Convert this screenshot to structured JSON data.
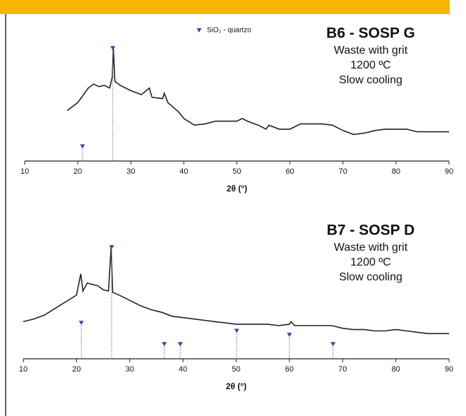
{
  "chart_data": [
    {
      "type": "line",
      "title": "B6 - SOSP G",
      "annotations": [
        "Waste with grit",
        "1200 ºC",
        "Slow cooling"
      ],
      "xlabel": "2θ (°)",
      "xlim": [
        10,
        90
      ],
      "xticks": [
        10,
        20,
        30,
        40,
        50,
        60,
        70,
        80,
        90
      ],
      "ylim": [
        0,
        100
      ],
      "series": [
        {
          "color": "#222222",
          "style": "line",
          "x": [
            18,
            20,
            22,
            23,
            24,
            25,
            26,
            26.5,
            26.7,
            27,
            28,
            30,
            32,
            33.5,
            34,
            36,
            36.3,
            37,
            39,
            40,
            42,
            44,
            46,
            48,
            50,
            51,
            52,
            54,
            55.5,
            56,
            58,
            60,
            62,
            64,
            66,
            68,
            70,
            72,
            74,
            76,
            78,
            80,
            82,
            84,
            86,
            88,
            90
          ],
          "values": [
            38,
            44,
            55,
            58,
            56,
            57,
            55,
            63,
            85,
            60,
            57,
            53,
            50,
            55,
            48,
            47,
            51,
            44,
            37,
            32,
            27,
            28,
            30,
            30,
            30,
            32,
            30,
            27,
            24,
            27,
            24,
            24,
            28,
            28,
            28,
            27,
            23,
            20,
            21,
            23,
            24,
            24,
            24,
            22,
            22,
            22,
            22
          ]
        },
        {
          "name": "SiO₂ - quartzo",
          "color": "#2b4ca8",
          "style": "stem",
          "x": [
            20.9,
            26.6
          ],
          "values": [
            11,
            85
          ]
        }
      ]
    },
    {
      "type": "line",
      "title": "B7 - SOSP D",
      "annotations": [
        "Waste with grit",
        "1200 ºC",
        "Slow cooling"
      ],
      "xlabel": "2θ (°)",
      "xlim": [
        10,
        90
      ],
      "xticks": [
        10,
        20,
        30,
        40,
        50,
        60,
        70,
        80,
        90
      ],
      "ylim": [
        0,
        100
      ],
      "series": [
        {
          "color": "#222222",
          "style": "line",
          "x": [
            10,
            12,
            14,
            16,
            18,
            20,
            20.8,
            21.2,
            22,
            24,
            25,
            26,
            26.5,
            26.8,
            28,
            30,
            32,
            34,
            36,
            38,
            40,
            42,
            44,
            46,
            48,
            50,
            52,
            54,
            56,
            58,
            60,
            60.3,
            61,
            64,
            66,
            68,
            70,
            72,
            74,
            76,
            78,
            80,
            82,
            84,
            86,
            88,
            90
          ],
          "values": [
            28,
            30,
            33,
            38,
            43,
            48,
            64,
            51,
            57,
            55,
            52,
            51,
            84,
            50,
            48,
            44,
            40,
            37,
            35,
            32,
            31,
            30,
            29,
            28,
            27,
            26,
            26,
            26,
            26,
            25,
            26,
            28,
            25,
            25,
            25,
            25,
            23,
            22,
            22,
            21,
            21,
            22,
            21,
            20,
            19,
            19,
            19
          ]
        },
        {
          "color": "#2b4ca8",
          "style": "stem",
          "x": [
            20.9,
            26.6,
            36.5,
            39.5,
            50.1,
            60,
            68.2
          ],
          "values": [
            27,
            84,
            11,
            11,
            21,
            18,
            11
          ]
        }
      ]
    }
  ]
}
